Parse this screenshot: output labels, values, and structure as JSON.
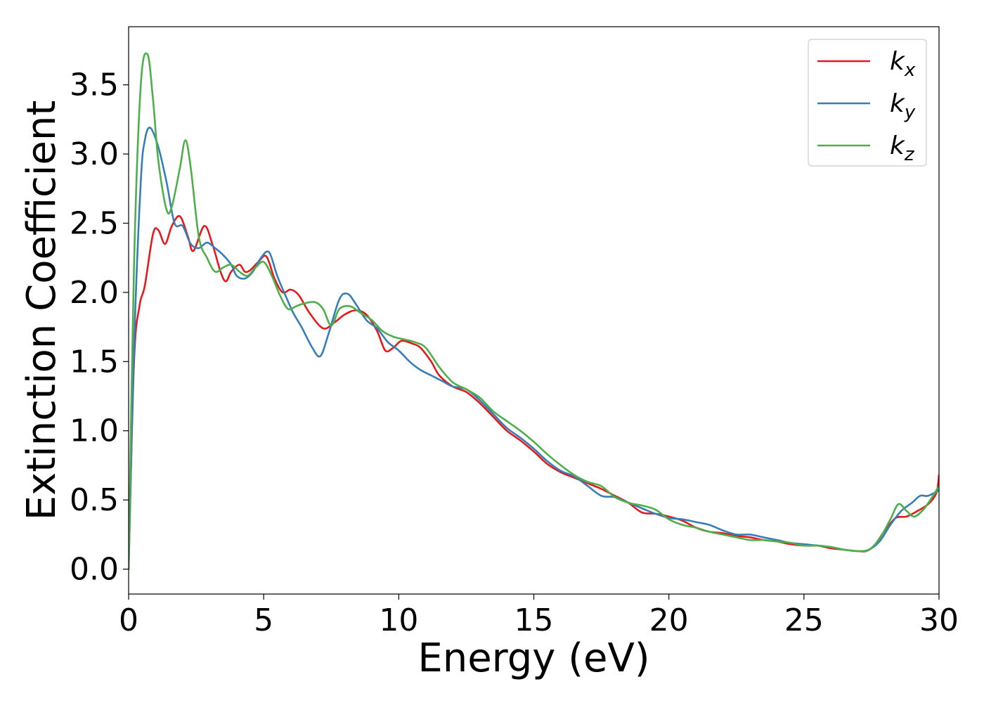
{
  "chart_data": {
    "type": "line",
    "xlabel": "Energy (eV)",
    "ylabel": "Extinction Coefficient",
    "xlim": [
      0,
      30
    ],
    "ylim": [
      -0.18,
      3.92
    ],
    "xticks": [
      0,
      5,
      10,
      15,
      20,
      25,
      30
    ],
    "yticks": [
      0.0,
      0.5,
      1.0,
      1.5,
      2.0,
      2.5,
      3.0,
      3.5
    ],
    "xtick_labels": [
      "0",
      "5",
      "10",
      "15",
      "20",
      "25",
      "30"
    ],
    "ytick_labels": [
      "0.0",
      "0.5",
      "1.0",
      "1.5",
      "2.0",
      "2.5",
      "3.0",
      "3.5"
    ],
    "grid": false,
    "legend_position": "top-right",
    "series": [
      {
        "name": "k_x",
        "label_base": "k",
        "label_sub": "x",
        "color": "#e41a1c",
        "x": [
          0,
          0.2,
          0.4,
          0.6,
          0.9,
          1.1,
          1.35,
          1.6,
          1.9,
          2.2,
          2.4,
          2.8,
          3.1,
          3.4,
          3.6,
          3.8,
          4.1,
          4.3,
          4.5,
          4.8,
          5.1,
          5.4,
          5.7,
          6.0,
          6.3,
          6.7,
          7.2,
          7.6,
          8.0,
          8.4,
          8.8,
          9.2,
          9.5,
          9.8,
          10.1,
          10.5,
          10.8,
          11.2,
          11.5,
          12.0,
          12.5,
          13.0,
          13.5,
          14.0,
          14.5,
          15.0,
          15.5,
          16.0,
          16.5,
          17.0,
          17.5,
          18.0,
          18.5,
          19.0,
          19.5,
          20.0,
          20.5,
          21.0,
          21.5,
          22.0,
          22.5,
          23.0,
          23.5,
          24.0,
          24.5,
          25.0,
          25.5,
          26.0,
          26.5,
          27.0,
          27.3,
          27.6,
          28.0,
          28.4,
          28.8,
          29.2,
          29.6,
          29.9,
          30.0
        ],
        "values": [
          0.0,
          1.5,
          1.9,
          2.05,
          2.42,
          2.45,
          2.35,
          2.48,
          2.55,
          2.4,
          2.3,
          2.48,
          2.35,
          2.15,
          2.08,
          2.15,
          2.2,
          2.15,
          2.16,
          2.22,
          2.26,
          2.1,
          2.0,
          2.02,
          1.98,
          1.85,
          1.74,
          1.78,
          1.84,
          1.87,
          1.84,
          1.72,
          1.58,
          1.6,
          1.65,
          1.63,
          1.6,
          1.5,
          1.4,
          1.32,
          1.28,
          1.2,
          1.1,
          1.0,
          0.93,
          0.85,
          0.76,
          0.7,
          0.66,
          0.62,
          0.58,
          0.53,
          0.48,
          0.41,
          0.4,
          0.38,
          0.35,
          0.3,
          0.27,
          0.26,
          0.24,
          0.23,
          0.21,
          0.2,
          0.18,
          0.17,
          0.17,
          0.15,
          0.14,
          0.13,
          0.13,
          0.17,
          0.28,
          0.37,
          0.38,
          0.42,
          0.47,
          0.55,
          0.68
        ]
      },
      {
        "name": "k_y",
        "label_base": "k",
        "label_sub": "y",
        "color": "#377eb8",
        "x": [
          0,
          0.2,
          0.45,
          0.6,
          0.8,
          1.1,
          1.4,
          1.7,
          2.0,
          2.3,
          2.6,
          2.9,
          3.2,
          3.5,
          3.8,
          4.0,
          4.3,
          4.6,
          4.9,
          5.2,
          5.5,
          5.8,
          6.1,
          6.4,
          6.8,
          7.1,
          7.4,
          7.8,
          8.1,
          8.4,
          8.8,
          9.2,
          9.6,
          10.0,
          10.4,
          10.8,
          11.2,
          11.6,
          12.0,
          12.5,
          13.0,
          13.5,
          14.0,
          14.5,
          15.0,
          15.5,
          16.0,
          16.5,
          17.0,
          17.5,
          18.0,
          18.5,
          19.0,
          19.5,
          20.0,
          20.5,
          21.0,
          21.5,
          22.0,
          22.5,
          23.0,
          23.5,
          24.0,
          24.5,
          25.0,
          25.5,
          26.0,
          26.5,
          27.0,
          27.4,
          27.8,
          28.2,
          28.6,
          29.0,
          29.3,
          29.6,
          30.0
        ],
        "values": [
          0.0,
          1.6,
          2.8,
          3.1,
          3.19,
          3.05,
          2.8,
          2.5,
          2.48,
          2.35,
          2.32,
          2.36,
          2.32,
          2.27,
          2.2,
          2.12,
          2.1,
          2.15,
          2.25,
          2.29,
          2.12,
          1.98,
          1.85,
          1.75,
          1.6,
          1.54,
          1.7,
          1.95,
          1.99,
          1.92,
          1.8,
          1.74,
          1.64,
          1.58,
          1.5,
          1.44,
          1.4,
          1.36,
          1.32,
          1.3,
          1.22,
          1.12,
          1.02,
          0.95,
          0.87,
          0.78,
          0.71,
          0.67,
          0.6,
          0.53,
          0.52,
          0.48,
          0.44,
          0.4,
          0.37,
          0.36,
          0.34,
          0.32,
          0.28,
          0.25,
          0.25,
          0.23,
          0.21,
          0.19,
          0.18,
          0.17,
          0.16,
          0.14,
          0.13,
          0.14,
          0.2,
          0.32,
          0.42,
          0.48,
          0.53,
          0.53,
          0.57
        ]
      },
      {
        "name": "k_z",
        "label_base": "k",
        "label_sub": "z",
        "color": "#4daf4a",
        "x": [
          0,
          0.2,
          0.45,
          0.7,
          0.9,
          1.1,
          1.4,
          1.6,
          1.9,
          2.1,
          2.3,
          2.6,
          2.9,
          3.2,
          3.5,
          3.8,
          4.1,
          4.4,
          4.7,
          5.0,
          5.3,
          5.6,
          5.9,
          6.2,
          6.5,
          6.9,
          7.2,
          7.5,
          7.8,
          8.2,
          8.6,
          9.0,
          9.4,
          9.8,
          10.2,
          10.6,
          11.0,
          11.5,
          12.0,
          12.5,
          13.0,
          13.5,
          14.0,
          14.5,
          15.0,
          15.5,
          16.0,
          16.5,
          17.0,
          17.5,
          18.0,
          18.5,
          19.0,
          19.5,
          20.0,
          20.5,
          21.0,
          21.5,
          22.0,
          22.5,
          23.0,
          23.5,
          24.0,
          24.5,
          25.0,
          25.5,
          26.0,
          26.5,
          27.0,
          27.4,
          27.8,
          28.2,
          28.5,
          28.8,
          29.1,
          29.5,
          30.0
        ],
        "values": [
          0.0,
          2.2,
          3.5,
          3.72,
          3.4,
          2.95,
          2.6,
          2.62,
          2.9,
          3.1,
          2.9,
          2.4,
          2.25,
          2.15,
          2.18,
          2.2,
          2.15,
          2.12,
          2.18,
          2.22,
          2.12,
          1.98,
          1.88,
          1.9,
          1.92,
          1.93,
          1.88,
          1.76,
          1.88,
          1.9,
          1.85,
          1.8,
          1.72,
          1.68,
          1.66,
          1.64,
          1.6,
          1.46,
          1.35,
          1.3,
          1.24,
          1.14,
          1.07,
          1.0,
          0.92,
          0.83,
          0.75,
          0.68,
          0.63,
          0.6,
          0.52,
          0.48,
          0.46,
          0.43,
          0.36,
          0.32,
          0.3,
          0.27,
          0.25,
          0.23,
          0.21,
          0.21,
          0.2,
          0.19,
          0.17,
          0.17,
          0.16,
          0.14,
          0.13,
          0.14,
          0.22,
          0.36,
          0.47,
          0.42,
          0.38,
          0.45,
          0.6
        ]
      }
    ]
  }
}
